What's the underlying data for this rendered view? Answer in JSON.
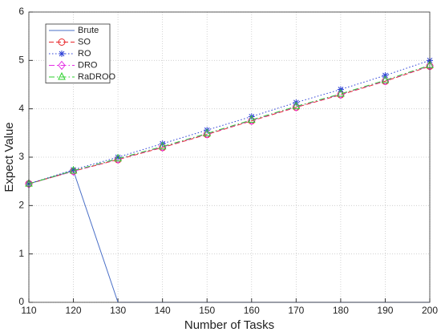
{
  "chart_data": {
    "type": "line",
    "xlabel": "Number of Tasks",
    "ylabel": "Expect Value",
    "x": [
      110,
      120,
      130,
      140,
      150,
      160,
      170,
      180,
      190,
      200
    ],
    "xlim": [
      110,
      200
    ],
    "xticks": [
      110,
      120,
      130,
      140,
      150,
      160,
      170,
      180,
      190,
      200
    ],
    "ylim": [
      0,
      6
    ],
    "yticks": [
      0,
      1,
      2,
      3,
      4,
      5,
      6
    ],
    "grid": true,
    "legend": "upper left",
    "series": [
      {
        "name": "Brute",
        "color": "#4a6fc7",
        "dash": "solid",
        "marker": "none",
        "values": [
          2.45,
          2.72,
          0,
          0,
          0,
          0,
          0,
          0,
          0,
          0
        ]
      },
      {
        "name": "SO",
        "color": "#e8262a",
        "dash": "dashed",
        "marker": "circle",
        "values": [
          2.45,
          2.71,
          2.95,
          3.2,
          3.47,
          3.75,
          4.03,
          4.29,
          4.57,
          4.88
        ]
      },
      {
        "name": "RO",
        "color": "#2b3fd6",
        "dash": "dotted",
        "marker": "asterisk",
        "values": [
          2.45,
          2.74,
          3.0,
          3.28,
          3.56,
          3.84,
          4.13,
          4.4,
          4.69,
          5.0
        ]
      },
      {
        "name": "DRO",
        "color": "#e52be5",
        "dash": "dashdot",
        "marker": "diamond",
        "values": [
          2.45,
          2.71,
          2.96,
          3.21,
          3.48,
          3.76,
          4.04,
          4.3,
          4.58,
          4.89
        ]
      },
      {
        "name": "RaDROO",
        "color": "#2ed12e",
        "dash": "dashdot",
        "marker": "triangle",
        "values": [
          2.45,
          2.72,
          2.97,
          3.22,
          3.49,
          3.77,
          4.05,
          4.31,
          4.59,
          4.9
        ]
      }
    ]
  }
}
